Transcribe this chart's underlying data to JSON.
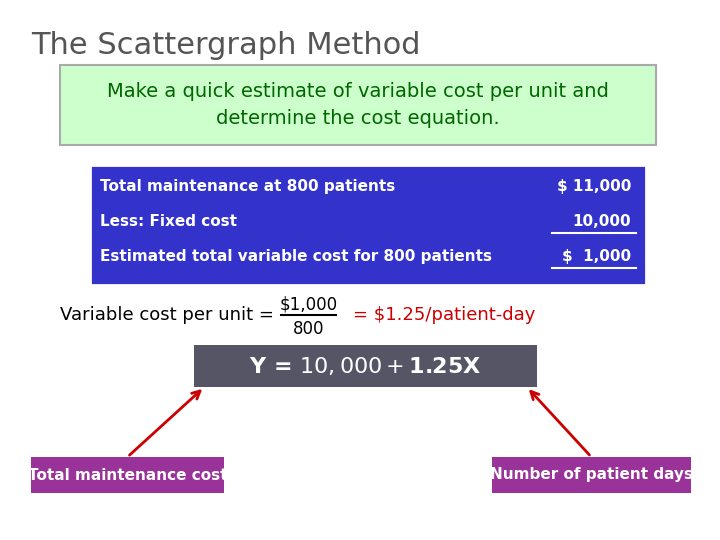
{
  "title": "The Scattergraph Method",
  "subtitle": "Make a quick estimate of variable cost per unit and\ndetermine the cost equation.",
  "subtitle_color": "#006600",
  "subtitle_bg": "#ccffcc",
  "subtitle_border": "#aaaaaa",
  "table_rows": [
    {
      "label": "Total maintenance at 800 patients",
      "value": "$ 11,000"
    },
    {
      "label": "Less: Fixed cost",
      "value": "10,000"
    },
    {
      "label": "Estimated total variable cost for 800 patients",
      "value": "$  1,000"
    }
  ],
  "table_bg": "#3333cc",
  "table_text_color": "#ffffff",
  "var_cost_label": "Variable cost per unit = ",
  "var_cost_numerator": "$1,000",
  "var_cost_denominator": "800",
  "var_cost_result": "= $1.25/patient-day",
  "var_cost_result_color": "#cc0000",
  "equation_text": "Y = $10,000 + $1.25X",
  "equation_bg": "#555566",
  "equation_text_color": "#ffffff",
  "label_left": "Total maintenance cost",
  "label_right": "Number of patient days",
  "label_bg": "#993399",
  "label_text_color": "#ffffff",
  "arrow_color": "#cc0000",
  "background_color": "#ffffff",
  "title_color": "#555555",
  "title_fontsize": 22,
  "subtitle_fontsize": 14
}
